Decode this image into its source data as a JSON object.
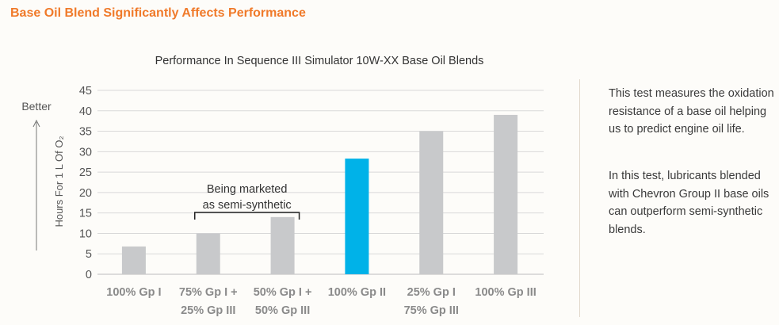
{
  "heading": "Base Oil Blend Significantly Affects Performance",
  "side_paragraphs": [
    "This test measures the oxidation resistance of a base oil helping us to predict engine oil life.",
    "In this test, lubricants blended with Chevron Group II base oils can outperform semi-synthetic blends."
  ],
  "colors": {
    "heading": "#f07a2a",
    "bar_default": "#c8c9cb",
    "bar_highlight": "#00b2e8"
  },
  "chart_data": {
    "type": "bar",
    "title": "Performance In Sequence III Simulator 10W-XX Base Oil Blends",
    "ylabel": "Hours For 1 L Of O₂",
    "better_label": "Better",
    "ylim": [
      0,
      45
    ],
    "yticks": [
      0,
      5,
      10,
      15,
      20,
      25,
      30,
      35,
      40,
      45
    ],
    "grid": true,
    "categories": [
      [
        "100% Gp I"
      ],
      [
        "75% Gp I +",
        "25% Gp III"
      ],
      [
        "50% Gp I +",
        "50% Gp III"
      ],
      [
        "100% Gp II"
      ],
      [
        "25% Gp I",
        "75% Gp III"
      ],
      [
        "100% Gp III"
      ]
    ],
    "values": [
      6.8,
      10,
      14,
      28.3,
      35,
      39
    ],
    "highlight_index": 3,
    "annotation": {
      "lines": [
        "Being marketed",
        "as semi-synthetic"
      ],
      "spans_categories": [
        1,
        2
      ]
    }
  }
}
